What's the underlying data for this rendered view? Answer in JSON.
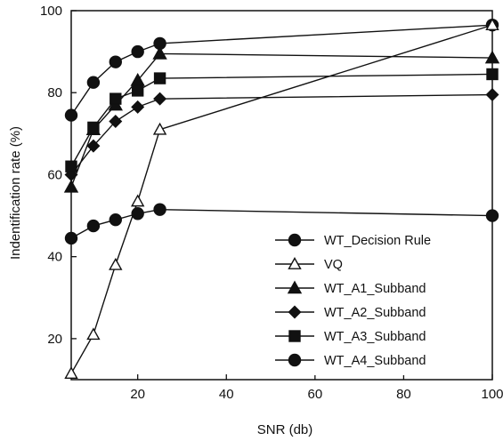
{
  "chart_data": {
    "type": "line",
    "title": "",
    "xlabel": "SNR  (db)",
    "ylabel": "Indentification rate (%)",
    "xlim": [
      5,
      100
    ],
    "ylim": [
      10,
      100
    ],
    "xticks": [
      20,
      40,
      60,
      80,
      100
    ],
    "yticks": [
      20,
      40,
      60,
      80,
      100
    ],
    "grid": false,
    "legend_position": "bottom-right",
    "series": [
      {
        "name": "WT_Decision  Rule",
        "marker": "circle-filled",
        "x": [
          5,
          10,
          15,
          20,
          25,
          100
        ],
        "y": [
          74.5,
          82.5,
          87.5,
          90,
          92,
          96.5
        ]
      },
      {
        "name": "VQ",
        "marker": "triangle-open",
        "x": [
          5,
          10,
          15,
          20,
          25,
          100
        ],
        "y": [
          11.5,
          21,
          38,
          53.5,
          71,
          96.5
        ]
      },
      {
        "name": "WT_A1_Subband",
        "marker": "triangle-filled",
        "x": [
          5,
          10,
          15,
          20,
          25,
          100
        ],
        "y": [
          57,
          71,
          77,
          83,
          89.5,
          88.5
        ]
      },
      {
        "name": "WT_A2_Subband",
        "marker": "diamond-filled",
        "x": [
          5,
          10,
          15,
          20,
          25,
          100
        ],
        "y": [
          60,
          67,
          73,
          76.5,
          78.5,
          79.5
        ]
      },
      {
        "name": "WT_A3_Subband",
        "marker": "square-filled",
        "x": [
          5,
          10,
          15,
          20,
          25,
          100
        ],
        "y": [
          62,
          71.5,
          78.5,
          80.5,
          83.5,
          84.5
        ]
      },
      {
        "name": "WT_A4_Subband",
        "marker": "circle-filled",
        "x": [
          5,
          10,
          15,
          20,
          25,
          100
        ],
        "y": [
          44.5,
          47.5,
          49,
          50.5,
          51.5,
          50
        ]
      }
    ]
  }
}
